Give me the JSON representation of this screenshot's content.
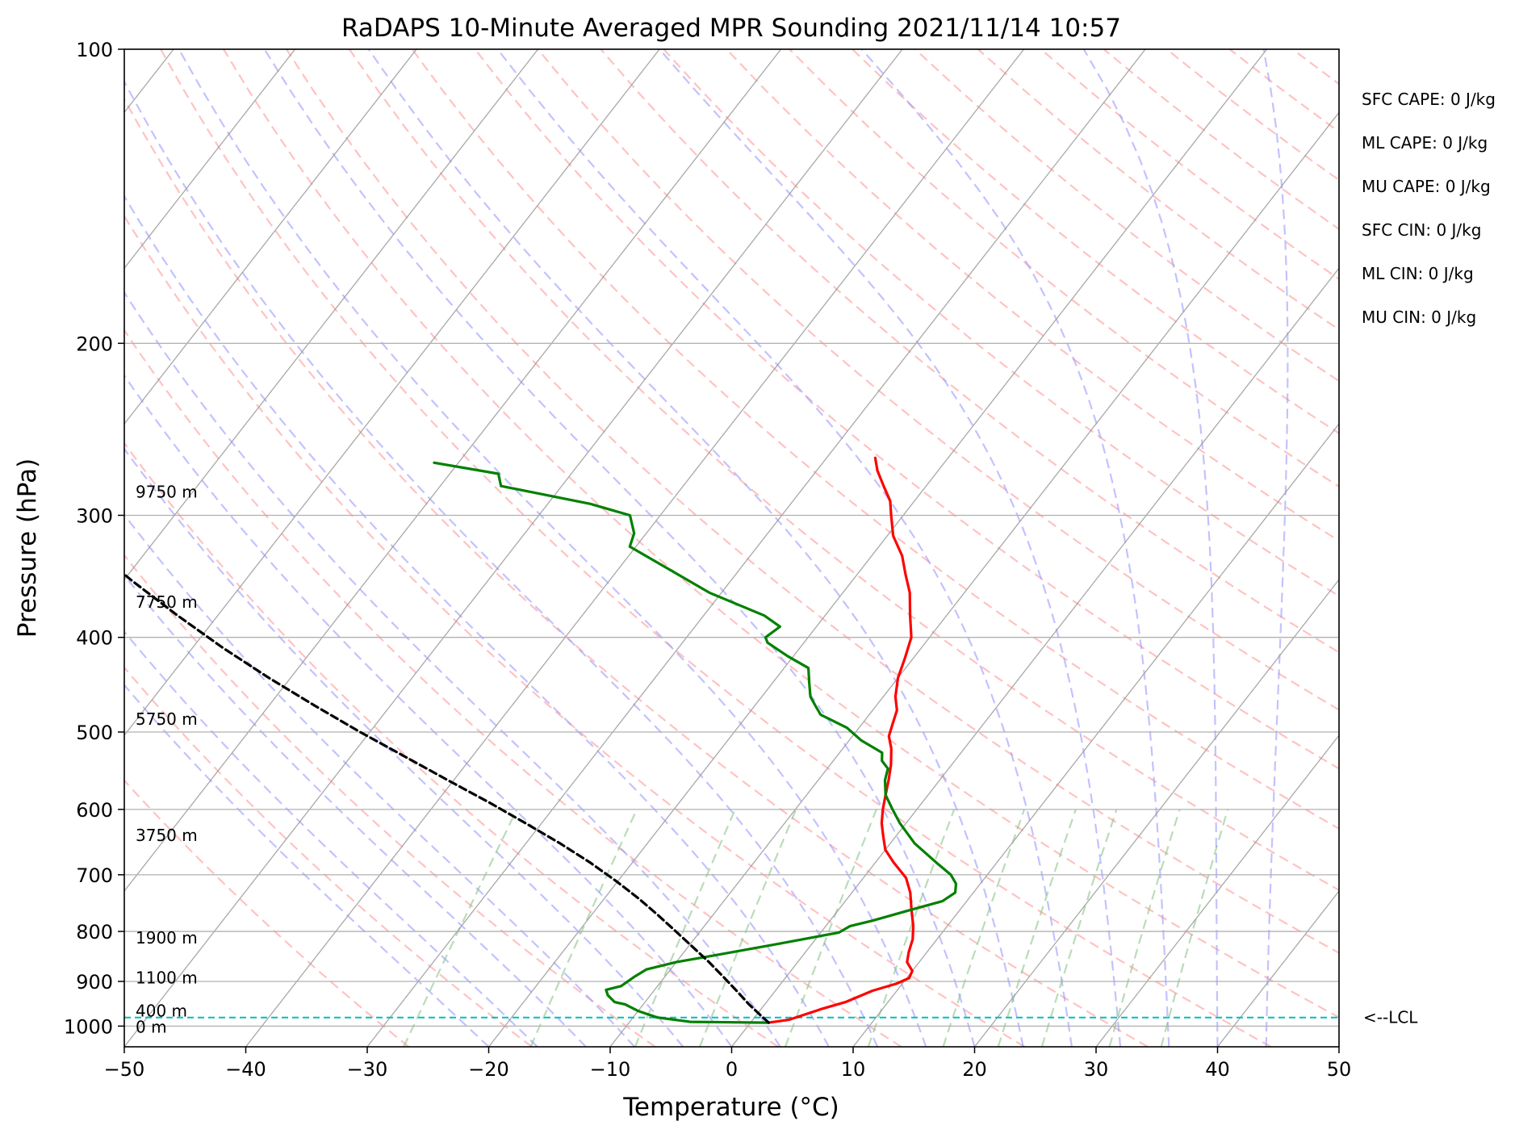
{
  "chart_data": {
    "type": "line",
    "title": "RaDAPS 10-Minute Averaged MPR Sounding 2021/11/14 10:57",
    "xlabel": "Temperature (°C)",
    "ylabel": "Pressure (hPa)",
    "xlim": [
      -50,
      50
    ],
    "ylim": [
      1050,
      100
    ],
    "yscale": "log",
    "skew": true,
    "x_ticks": [
      {
        "value": -50,
        "label": "−50"
      },
      {
        "value": -40,
        "label": "−40"
      },
      {
        "value": -30,
        "label": "−30"
      },
      {
        "value": -20,
        "label": "−20"
      },
      {
        "value": -10,
        "label": "−10"
      },
      {
        "value": 0,
        "label": "0"
      },
      {
        "value": 10,
        "label": "10"
      },
      {
        "value": 20,
        "label": "20"
      },
      {
        "value": 30,
        "label": "30"
      },
      {
        "value": 40,
        "label": "40"
      },
      {
        "value": 50,
        "label": "50"
      }
    ],
    "y_ticks": [
      {
        "value": 100,
        "label": "100"
      },
      {
        "value": 200,
        "label": "200"
      },
      {
        "value": 300,
        "label": "300"
      },
      {
        "value": 400,
        "label": "400"
      },
      {
        "value": 500,
        "label": "500"
      },
      {
        "value": 600,
        "label": "600"
      },
      {
        "value": 700,
        "label": "700"
      },
      {
        "value": 800,
        "label": "800"
      },
      {
        "value": 900,
        "label": "900"
      },
      {
        "value": 1000,
        "label": "1000"
      }
    ],
    "grid": true,
    "colors": {
      "temperature": "#ff0000",
      "dewpoint": "#008000",
      "parcel": "#000000",
      "lcl": "#00bfbf",
      "isotherm": "#999999",
      "dry_adiabat": "#ff9999",
      "moist_adiabat": "#9999ff",
      "mixing_ratio": "#80c080",
      "gridline": "#b0b0b0"
    },
    "series": [
      {
        "name": "temperature",
        "points": [
          [
            1.5,
            992
          ],
          [
            3.0,
            985
          ],
          [
            5.0,
            960
          ],
          [
            6.5,
            945
          ],
          [
            8.0,
            920
          ],
          [
            9.5,
            905
          ],
          [
            10.2,
            893
          ],
          [
            10.0,
            878
          ],
          [
            9.0,
            860
          ],
          [
            8.5,
            840
          ],
          [
            8.0,
            815
          ],
          [
            7.2,
            790
          ],
          [
            6.0,
            760
          ],
          [
            4.8,
            730
          ],
          [
            3.5,
            705
          ],
          [
            1.5,
            680
          ],
          [
            0.0,
            660
          ],
          [
            -1.0,
            640
          ],
          [
            -2.0,
            620
          ],
          [
            -2.8,
            600
          ],
          [
            -3.5,
            580
          ],
          [
            -4.2,
            560
          ],
          [
            -5.0,
            540
          ],
          [
            -6.0,
            520
          ],
          [
            -7.0,
            505
          ],
          [
            -7.5,
            490
          ],
          [
            -8.0,
            475
          ],
          [
            -9.0,
            460
          ],
          [
            -10.0,
            440
          ],
          [
            -10.7,
            420
          ],
          [
            -11.5,
            400
          ],
          [
            -13.0,
            380
          ],
          [
            -14.5,
            360
          ],
          [
            -16.0,
            345
          ],
          [
            -17.5,
            330
          ],
          [
            -19.5,
            315
          ],
          [
            -21.0,
            300
          ],
          [
            -22.0,
            290
          ],
          [
            -23.5,
            280
          ],
          [
            -25.0,
            270
          ],
          [
            -26.0,
            262
          ]
        ]
      },
      {
        "name": "dewpoint",
        "points": [
          [
            1.5,
            992
          ],
          [
            -5.0,
            990
          ],
          [
            -8.0,
            980
          ],
          [
            -10.0,
            965
          ],
          [
            -11.5,
            950
          ],
          [
            -12.5,
            945
          ],
          [
            -13.5,
            930
          ],
          [
            -14.0,
            918
          ],
          [
            -13.0,
            910
          ],
          [
            -12.5,
            890
          ],
          [
            -12.0,
            875
          ],
          [
            -10.0,
            860
          ],
          [
            -7.0,
            845
          ],
          [
            -3.0,
            825
          ],
          [
            1.5,
            802
          ],
          [
            2.0,
            790
          ],
          [
            3.5,
            780
          ],
          [
            6.0,
            760
          ],
          [
            8.0,
            745
          ],
          [
            8.5,
            730
          ],
          [
            8.0,
            715
          ],
          [
            7.0,
            700
          ],
          [
            5.0,
            680
          ],
          [
            2.0,
            650
          ],
          [
            -0.5,
            620
          ],
          [
            -2.0,
            600
          ],
          [
            -3.5,
            580
          ],
          [
            -4.5,
            560
          ],
          [
            -5.0,
            545
          ],
          [
            -6.0,
            535
          ],
          [
            -6.5,
            525
          ],
          [
            -9.0,
            510
          ],
          [
            -11.0,
            495
          ],
          [
            -14.0,
            480
          ],
          [
            -15.0,
            470
          ],
          [
            -16.0,
            460
          ],
          [
            -17.0,
            445
          ],
          [
            -18.0,
            430
          ],
          [
            -20.5,
            418
          ],
          [
            -23.0,
            405
          ],
          [
            -23.5,
            400
          ],
          [
            -23.0,
            390
          ],
          [
            -25.0,
            380
          ],
          [
            -31.0,
            360
          ],
          [
            -36.0,
            340
          ],
          [
            -40.5,
            323
          ],
          [
            -41.0,
            313
          ],
          [
            -42.5,
            300
          ],
          [
            -46.5,
            292
          ],
          [
            -55.0,
            280
          ],
          [
            -56.0,
            272
          ],
          [
            -62.0,
            265
          ]
        ]
      },
      {
        "name": "parcel",
        "points": [
          [
            1.5,
            992
          ],
          [
            0.7,
            980
          ],
          [
            -1.3,
            950
          ],
          [
            -3.2,
            920
          ],
          [
            -5.2,
            890
          ],
          [
            -7.3,
            860
          ],
          [
            -9.6,
            830
          ],
          [
            -12.0,
            800
          ],
          [
            -14.5,
            770
          ],
          [
            -17.2,
            740
          ],
          [
            -20.2,
            710
          ],
          [
            -23.5,
            680
          ],
          [
            -27.2,
            650
          ],
          [
            -31.3,
            620
          ],
          [
            -35.7,
            590
          ],
          [
            -40.5,
            560
          ],
          [
            -45.5,
            530
          ],
          [
            -50.8,
            500
          ],
          [
            -56.2,
            470
          ],
          [
            -61.8,
            440
          ],
          [
            -67.5,
            410
          ],
          [
            -73.3,
            380
          ],
          [
            -79.3,
            350
          ],
          [
            -85.5,
            320
          ],
          [
            -91.8,
            290
          ],
          [
            -95.0,
            276
          ]
        ]
      }
    ],
    "height_labels": [
      {
        "text": "9750 m",
        "p": 284
      },
      {
        "text": "7750 m",
        "p": 368
      },
      {
        "text": "5750 m",
        "p": 485
      },
      {
        "text": "3750 m",
        "p": 638
      },
      {
        "text": "1900 m",
        "p": 812
      },
      {
        "text": "1100 m",
        "p": 892
      },
      {
        "text": "400 m",
        "p": 965
      },
      {
        "text": "0 m",
        "p": 1002
      }
    ],
    "lcl": {
      "p": 980,
      "label": "<--LCL"
    },
    "indices": [
      "SFC CAPE: 0 J/kg",
      "ML CAPE: 0 J/kg",
      "MU CAPE: 0 J/kg",
      "SFC CIN: 0 J/kg",
      "ML CIN: 0 J/kg",
      "MU CIN: 0 J/kg"
    ]
  }
}
